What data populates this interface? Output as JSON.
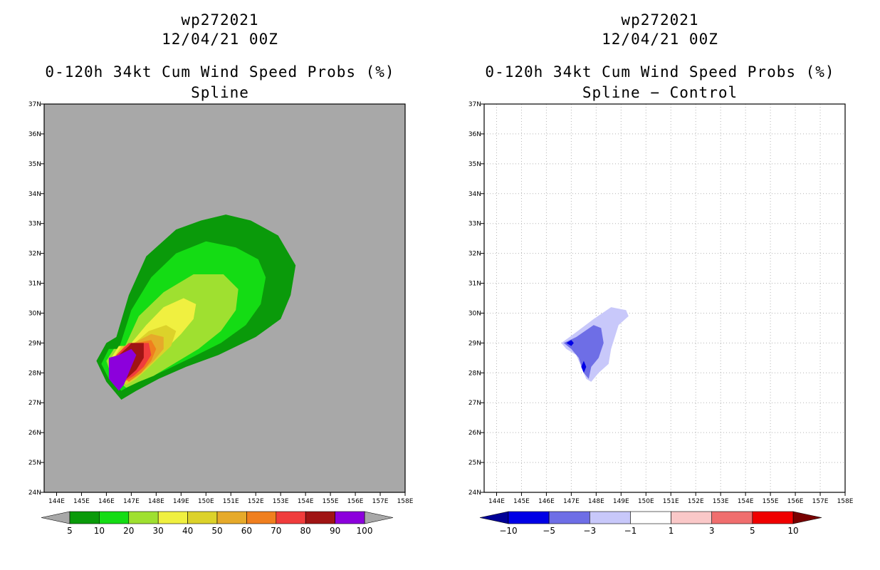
{
  "panels": [
    {
      "storm_id": "wp272021",
      "datetime": "12/04/21 00Z",
      "title": "0-120h 34kt Cum Wind Speed Probs (%)",
      "subtitle": "Spline"
    },
    {
      "storm_id": "wp272021",
      "datetime": "12/04/21 00Z",
      "title": "0-120h 34kt Cum Wind Speed Probs (%)",
      "subtitle": "Spline − Control"
    }
  ],
  "chart_data": [
    {
      "type": "filled-contour-map",
      "title": "0-120h 34kt Cum Wind Speed Probs (%) Spline",
      "lon_range": [
        143.5,
        158
      ],
      "lat_range": [
        24,
        37
      ],
      "x_tick_labels": [
        "144E",
        "145E",
        "146E",
        "147E",
        "148E",
        "149E",
        "150E",
        "151E",
        "152E",
        "153E",
        "154E",
        "155E",
        "156E",
        "157E",
        "158E"
      ],
      "y_tick_labels": [
        "24N",
        "25N",
        "26N",
        "27N",
        "28N",
        "29N",
        "30N",
        "31N",
        "32N",
        "33N",
        "34N",
        "35N",
        "36N",
        "37N"
      ],
      "background_color": "#a8a8a8",
      "levels": [
        {
          "min": 5,
          "color": "#0a9a0a",
          "polygon": [
            [
              146.4,
              29.2
            ],
            [
              146.9,
              30.6
            ],
            [
              147.6,
              31.9
            ],
            [
              148.8,
              32.8
            ],
            [
              149.8,
              33.1
            ],
            [
              150.8,
              33.3
            ],
            [
              151.8,
              33.1
            ],
            [
              152.9,
              32.6
            ],
            [
              153.6,
              31.6
            ],
            [
              153.4,
              30.6
            ],
            [
              153,
              29.8
            ],
            [
              152,
              29.2
            ],
            [
              150.5,
              28.6
            ],
            [
              149.2,
              28.2
            ],
            [
              148.1,
              27.8
            ],
            [
              147.2,
              27.4
            ],
            [
              146.6,
              27.1
            ],
            [
              146,
              27.7
            ],
            [
              145.6,
              28.4
            ],
            [
              146,
              29
            ]
          ]
        },
        {
          "min": 10,
          "color": "#14dc14",
          "polygon": [
            [
              146.5,
              28.8
            ],
            [
              147,
              30.1
            ],
            [
              147.8,
              31.2
            ],
            [
              148.8,
              32
            ],
            [
              150,
              32.4
            ],
            [
              151.2,
              32.2
            ],
            [
              152.1,
              31.8
            ],
            [
              152.4,
              31.2
            ],
            [
              152.2,
              30.3
            ],
            [
              151.6,
              29.6
            ],
            [
              150.6,
              29
            ],
            [
              149.4,
              28.5
            ],
            [
              148.4,
              28.1
            ],
            [
              147.6,
              27.8
            ],
            [
              147,
              27.6
            ],
            [
              146.6,
              27.4
            ],
            [
              146.1,
              27.8
            ],
            [
              145.8,
              28.3
            ],
            [
              146.1,
              28.8
            ]
          ]
        },
        {
          "min": 20,
          "color": "#9fe030",
          "polygon": [
            [
              146.7,
              28.8
            ],
            [
              147.3,
              29.9
            ],
            [
              148.3,
              30.7
            ],
            [
              149.5,
              31.3
            ],
            [
              150.7,
              31.3
            ],
            [
              151.3,
              30.8
            ],
            [
              151.2,
              30.1
            ],
            [
              150.6,
              29.4
            ],
            [
              149.7,
              28.8
            ],
            [
              148.7,
              28.3
            ],
            [
              147.9,
              27.9
            ],
            [
              147.3,
              27.7
            ],
            [
              146.8,
              27.5
            ],
            [
              146.2,
              27.9
            ],
            [
              146,
              28.4
            ],
            [
              146.3,
              28.8
            ]
          ]
        },
        {
          "min": 30,
          "color": "#f0f040",
          "polygon": [
            [
              146.9,
              28.9
            ],
            [
              147.6,
              29.6
            ],
            [
              148.3,
              30.2
            ],
            [
              149.1,
              30.5
            ],
            [
              149.6,
              30.3
            ],
            [
              149.5,
              29.8
            ],
            [
              149,
              29.3
            ],
            [
              148.4,
              28.8
            ],
            [
              147.8,
              28.3
            ],
            [
              147.2,
              27.9
            ],
            [
              146.8,
              27.6
            ],
            [
              146.3,
              28
            ],
            [
              146.2,
              28.5
            ],
            [
              146.5,
              28.9
            ]
          ]
        },
        {
          "min": 40,
          "color": "#dcd22a",
          "polygon": [
            [
              147,
              28.9
            ],
            [
              147.7,
              29.4
            ],
            [
              148.4,
              29.6
            ],
            [
              148.8,
              29.4
            ],
            [
              148.6,
              28.9
            ],
            [
              148.1,
              28.5
            ],
            [
              147.6,
              28.1
            ],
            [
              147.2,
              27.8
            ],
            [
              146.8,
              27.6
            ],
            [
              146.4,
              28
            ],
            [
              146.3,
              28.5
            ],
            [
              146.6,
              28.9
            ]
          ]
        },
        {
          "min": 50,
          "color": "#e6aa2a",
          "polygon": [
            [
              147.1,
              29
            ],
            [
              147.8,
              29.3
            ],
            [
              148.3,
              29.2
            ],
            [
              148.3,
              28.8
            ],
            [
              147.9,
              28.4
            ],
            [
              147.4,
              28
            ],
            [
              146.9,
              27.7
            ],
            [
              146.5,
              28
            ],
            [
              146.4,
              28.5
            ],
            [
              146.7,
              28.9
            ]
          ]
        },
        {
          "min": 60,
          "color": "#f07f1e",
          "polygon": [
            [
              147.2,
              29
            ],
            [
              147.8,
              29.1
            ],
            [
              148,
              28.8
            ],
            [
              147.8,
              28.4
            ],
            [
              147.4,
              28
            ],
            [
              146.9,
              27.7
            ],
            [
              146.5,
              28
            ],
            [
              146.4,
              28.5
            ],
            [
              146.8,
              28.9
            ]
          ]
        },
        {
          "min": 70,
          "color": "#f03c3c",
          "polygon": [
            [
              147.2,
              29
            ],
            [
              147.7,
              29
            ],
            [
              147.8,
              28.6
            ],
            [
              147.5,
              28.2
            ],
            [
              147.1,
              27.9
            ],
            [
              146.7,
              27.7
            ],
            [
              146.4,
              28.1
            ],
            [
              146.4,
              28.6
            ],
            [
              146.9,
              29
            ]
          ]
        },
        {
          "min": 80,
          "color": "#a01414",
          "polygon": [
            [
              147,
              29
            ],
            [
              147.5,
              29
            ],
            [
              147.5,
              28.5
            ],
            [
              147.2,
              28.1
            ],
            [
              146.8,
              27.8
            ],
            [
              146.5,
              28.1
            ],
            [
              146.5,
              28.6
            ],
            [
              146.9,
              28.9
            ]
          ]
        },
        {
          "min": 90,
          "color": "#8c00dc",
          "polygon": [
            [
              146.5,
              28.6
            ],
            [
              147,
              28.8
            ],
            [
              147.2,
              28.6
            ],
            [
              147,
              28.2
            ],
            [
              146.7,
              27.6
            ],
            [
              146.5,
              27.4
            ],
            [
              146.1,
              27.8
            ],
            [
              146.1,
              28.5
            ]
          ]
        }
      ],
      "colorbar": {
        "labels": [
          "5",
          "10",
          "20",
          "30",
          "40",
          "50",
          "60",
          "70",
          "80",
          "90",
          "100"
        ],
        "colors": [
          "#0a9a0a",
          "#14dc14",
          "#9fe030",
          "#f0f040",
          "#dcd22a",
          "#e6aa2a",
          "#f07f1e",
          "#f03c3c",
          "#a01414",
          "#8c00dc"
        ],
        "under_color": "#a8a8a8",
        "over_color": "#a8a8a8"
      }
    },
    {
      "type": "filled-contour-map",
      "title": "0-120h 34kt Cum Wind Speed Probs (%) Spline - Control",
      "lon_range": [
        143.5,
        158
      ],
      "lat_range": [
        24,
        37
      ],
      "grid": true,
      "x_tick_labels": [
        "144E",
        "145E",
        "146E",
        "147E",
        "148E",
        "149E",
        "150E",
        "151E",
        "152E",
        "153E",
        "154E",
        "155E",
        "156E",
        "157E",
        "158E"
      ],
      "y_tick_labels": [
        "24N",
        "25N",
        "26N",
        "27N",
        "28N",
        "29N",
        "30N",
        "31N",
        "32N",
        "33N",
        "34N",
        "35N",
        "36N",
        "37N"
      ],
      "background_color": "#ffffff",
      "levels": [
        {
          "max": -1,
          "color": "#c8c8fa",
          "polygon": [
            [
              146.6,
              29
            ],
            [
              147.1,
              29.3
            ],
            [
              147.9,
              29.8
            ],
            [
              148.6,
              30.2
            ],
            [
              149.2,
              30.1
            ],
            [
              149.3,
              29.9
            ],
            [
              148.9,
              29.6
            ],
            [
              148.6,
              28.8
            ],
            [
              148.5,
              28.3
            ],
            [
              148.1,
              28
            ],
            [
              147.8,
              27.7
            ],
            [
              147.6,
              27.8
            ],
            [
              147.4,
              28.2
            ],
            [
              147.2,
              28.6
            ],
            [
              146.8,
              28.8
            ]
          ]
        },
        {
          "max": -3,
          "color": "#6e6ee6",
          "polygon": [
            [
              146.7,
              29
            ],
            [
              147.2,
              29.2
            ],
            [
              147.9,
              29.6
            ],
            [
              148.2,
              29.5
            ],
            [
              148.3,
              29
            ],
            [
              148.1,
              28.5
            ],
            [
              147.8,
              28.2
            ],
            [
              147.7,
              27.8
            ],
            [
              147.5,
              28
            ],
            [
              147.3,
              28.5
            ],
            [
              147,
              28.8
            ]
          ]
        },
        {
          "max": -5,
          "color": "#0000e6",
          "polygon": [
            [
              146.8,
              29
            ],
            [
              147,
              29.1
            ],
            [
              147.1,
              29
            ],
            [
              147,
              28.9
            ]
          ]
        },
        {
          "max": -5,
          "color": "#0000e6",
          "polygon": [
            [
              147.4,
              28.2
            ],
            [
              147.5,
              28.4
            ],
            [
              147.6,
              28.2
            ],
            [
              147.5,
              28
            ]
          ]
        }
      ],
      "colorbar": {
        "labels": [
          "−10",
          "−5",
          "−3",
          "−1",
          "1",
          "3",
          "5",
          "10"
        ],
        "colors": [
          "#0000e6",
          "#6e6ee6",
          "#c8c8fa",
          "#ffffff",
          "#fac8c8",
          "#f06e6e",
          "#f00000"
        ],
        "under_color": "#000096",
        "over_color": "#780000"
      }
    }
  ]
}
